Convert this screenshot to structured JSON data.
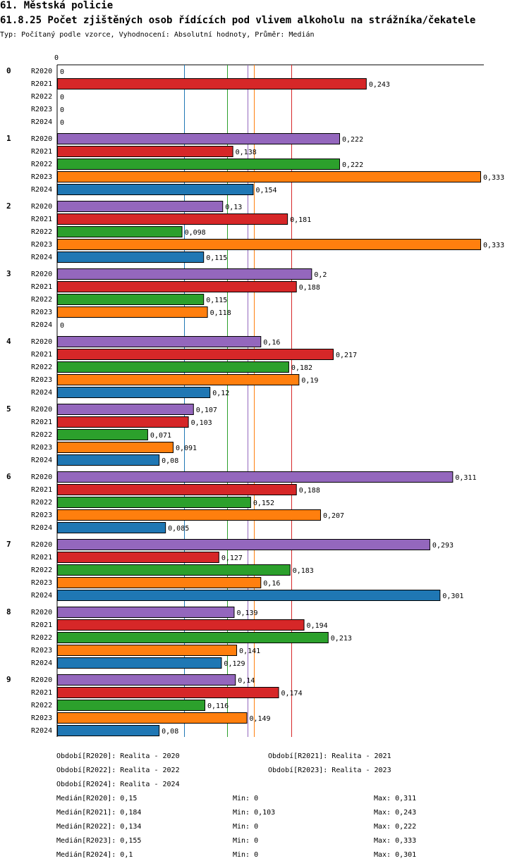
{
  "header": {
    "title": "61. Městská policie",
    "subtitle": "61.8.25 Počet zjištěných osob řídících pod vlivem alkoholu na strážníka/čekatele",
    "info": "Typ: Počítaný podle vzorce, Vyhodnocení: Absolutní hodnoty, Průměr: Medián"
  },
  "chart_data": {
    "type": "bar",
    "orientation": "horizontal",
    "axis_zero_label": "0",
    "groups": [
      "0",
      "1",
      "2",
      "3",
      "4",
      "5",
      "6",
      "7",
      "8",
      "9"
    ],
    "series": [
      {
        "name": "R2020",
        "color": "#9467bd",
        "values": [
          0,
          0.222,
          0.13,
          0.2,
          0.16,
          0.107,
          0.311,
          0.293,
          0.139,
          0.14
        ]
      },
      {
        "name": "R2021",
        "color": "#d62728",
        "values": [
          0.243,
          0.138,
          0.181,
          0.188,
          0.217,
          0.103,
          0.188,
          0.127,
          0.194,
          0.174
        ]
      },
      {
        "name": "R2022",
        "color": "#2ca02c",
        "values": [
          0,
          0.222,
          0.098,
          0.115,
          0.182,
          0.071,
          0.152,
          0.183,
          0.213,
          0.116
        ]
      },
      {
        "name": "R2023",
        "color": "#ff7f0e",
        "values": [
          0,
          0.333,
          0.333,
          0.118,
          0.19,
          0.091,
          0.207,
          0.16,
          0.141,
          0.149
        ]
      },
      {
        "name": "R2024",
        "color": "#1f77b4",
        "values": [
          0,
          0.154,
          0.115,
          0,
          0.12,
          0.08,
          0.085,
          0.301,
          0.129,
          0.08
        ]
      }
    ],
    "value_labels": [
      [
        "0",
        "0,222",
        "0,13",
        "0,2",
        "0,16",
        "0,107",
        "0,311",
        "0,293",
        "0,139",
        "0,14"
      ],
      [
        "0,243",
        "0,138",
        "0,181",
        "0,188",
        "0,217",
        "0,103",
        "0,188",
        "0,127",
        "0,194",
        "0,174"
      ],
      [
        "0",
        "0,222",
        "0,098",
        "0,115",
        "0,182",
        "0,071",
        "0,152",
        "0,183",
        "0,213",
        "0,116"
      ],
      [
        "0",
        "0,333",
        "0,333",
        "0,118",
        "0,19",
        "0,091",
        "0,207",
        "0,16",
        "0,141",
        "0,149"
      ],
      [
        "0",
        "0,154",
        "0,115",
        "0",
        "0,12",
        "0,08",
        "0,085",
        "0,301",
        "0,129",
        "0,08"
      ]
    ],
    "xlim": [
      0,
      0.333
    ],
    "median_lines": [
      {
        "series": "R2020",
        "value": 0.15,
        "color": "#9467bd"
      },
      {
        "series": "R2021",
        "value": 0.184,
        "color": "#d62728"
      },
      {
        "series": "R2022",
        "value": 0.134,
        "color": "#2ca02c"
      },
      {
        "series": "R2023",
        "value": 0.155,
        "color": "#ff7f0e"
      },
      {
        "series": "R2024",
        "value": 0.1,
        "color": "#1f77b4"
      }
    ]
  },
  "legend": {
    "periods": [
      "Období[R2020]: Realita - 2020",
      "Období[R2021]: Realita - 2021",
      "Období[R2022]: Realita - 2022",
      "Období[R2023]: Realita - 2023",
      "Období[R2024]: Realita - 2024"
    ],
    "stats": [
      {
        "median": "Medián[R2020]: 0,15",
        "min": "Min: 0",
        "max": "Max: 0,311"
      },
      {
        "median": "Medián[R2021]: 0,184",
        "min": "Min: 0,103",
        "max": "Max: 0,243"
      },
      {
        "median": "Medián[R2022]: 0,134",
        "min": "Min: 0",
        "max": "Max: 0,222"
      },
      {
        "median": "Medián[R2023]: 0,155",
        "min": "Min: 0",
        "max": "Max: 0,333"
      },
      {
        "median": "Medián[R2024]: 0,1",
        "min": "Min: 0",
        "max": "Max: 0,301"
      }
    ]
  }
}
